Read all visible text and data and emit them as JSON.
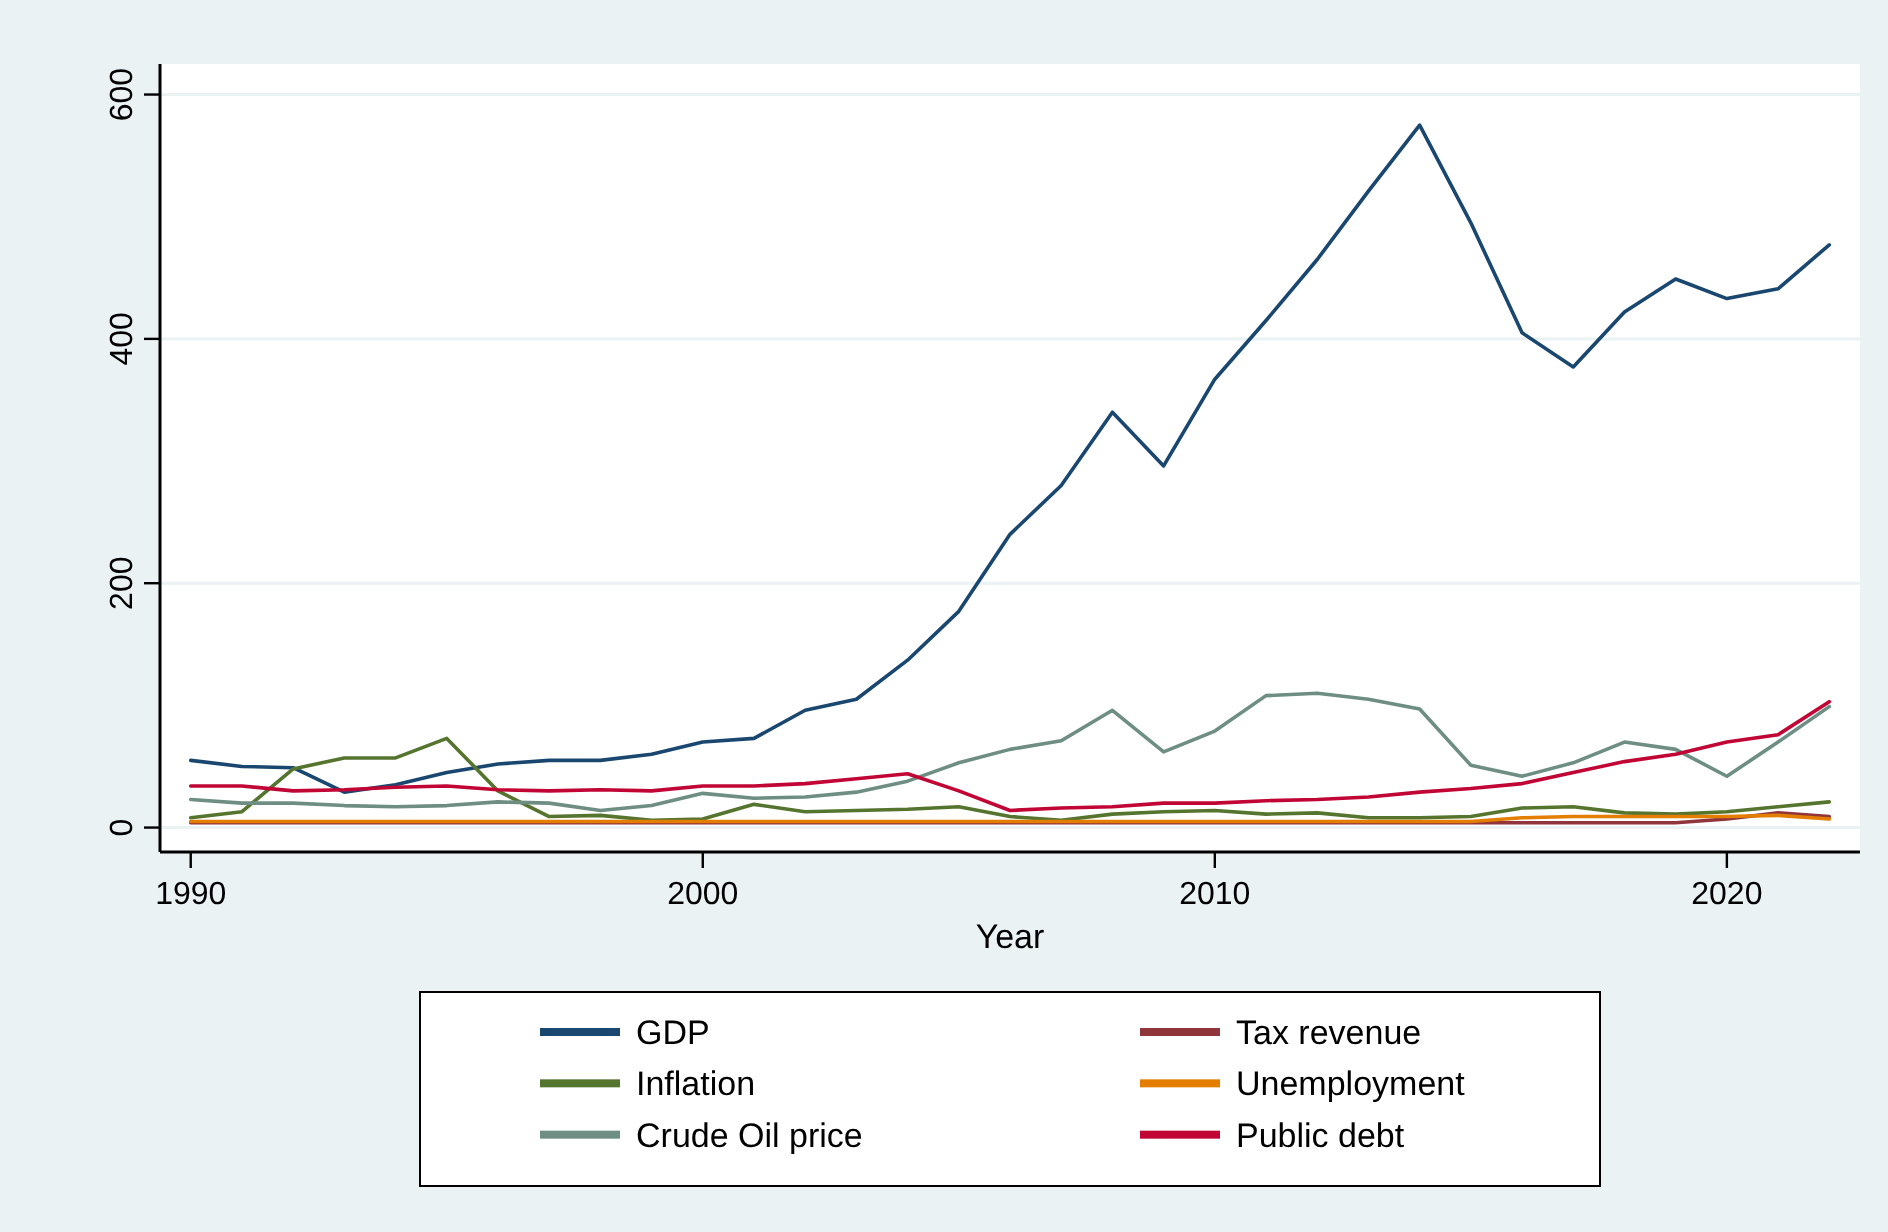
{
  "chart_data": {
    "type": "line",
    "xlabel": "Year",
    "x": [
      1990,
      1991,
      1992,
      1993,
      1994,
      1995,
      1996,
      1997,
      1998,
      1999,
      2000,
      2001,
      2002,
      2003,
      2004,
      2005,
      2006,
      2007,
      2008,
      2009,
      2010,
      2011,
      2012,
      2013,
      2014,
      2015,
      2016,
      2017,
      2018,
      2019,
      2020,
      2021,
      2022
    ],
    "xlim": [
      1989.4,
      2022.6
    ],
    "xticks": [
      1990,
      2000,
      2010,
      2020
    ],
    "ylim": [
      -20,
      625
    ],
    "yticks": [
      0,
      200,
      400,
      600
    ],
    "grid": "y",
    "legend": "bottom",
    "line_style": "solid",
    "marker": "none",
    "series": [
      {
        "name": "GDP",
        "color": "#1a476f",
        "values": [
          55,
          50,
          49,
          29,
          35,
          45,
          52,
          55,
          55,
          60,
          70,
          73,
          96,
          105,
          137,
          177,
          240,
          280,
          340,
          296,
          367,
          415,
          465,
          521,
          575,
          495,
          405,
          377,
          422,
          449,
          433,
          441,
          477
        ]
      },
      {
        "name": "Tax revenue",
        "color": "#90353b",
        "values": [
          4,
          4,
          4,
          4,
          4,
          4,
          4,
          4,
          4,
          4,
          4,
          4,
          4,
          4,
          4,
          4,
          4,
          4,
          4,
          4,
          4,
          4,
          4,
          4,
          4,
          4,
          4,
          4,
          4,
          4,
          7,
          12,
          9
        ]
      },
      {
        "name": "Inflation",
        "color": "#55752f",
        "values": [
          8,
          13,
          48,
          57,
          57,
          73,
          30,
          9,
          10,
          6,
          7,
          19,
          13,
          14,
          15,
          17,
          9,
          6,
          11,
          13,
          14,
          11,
          12,
          8,
          8,
          9,
          16,
          17,
          12,
          11,
          13,
          17,
          21
        ]
      },
      {
        "name": "Unemployment",
        "color": "#e37e00",
        "values": [
          5,
          5,
          5,
          5,
          5,
          5,
          5,
          5,
          5,
          5,
          5,
          5,
          5,
          5,
          5,
          5,
          5,
          5,
          5,
          5,
          5,
          5,
          5,
          5,
          5,
          5,
          8,
          9,
          9,
          9,
          9,
          10,
          7
        ]
      },
      {
        "name": "Crude Oil price",
        "color": "#6e8e84",
        "values": [
          23,
          20,
          20,
          18,
          17,
          18,
          21,
          20,
          14,
          18,
          28,
          24,
          25,
          29,
          38,
          53,
          64,
          71,
          96,
          62,
          79,
          108,
          110,
          105,
          97,
          51,
          42,
          53,
          70,
          64,
          42,
          70,
          99
        ]
      },
      {
        "name": "Public debt",
        "color": "#c10534",
        "values": [
          34,
          34,
          30,
          31,
          33,
          34,
          31,
          30,
          31,
          30,
          34,
          34,
          36,
          40,
          44,
          30,
          14,
          16,
          17,
          20,
          20,
          22,
          23,
          25,
          29,
          32,
          36,
          45,
          54,
          60,
          70,
          76,
          103
        ]
      }
    ]
  }
}
